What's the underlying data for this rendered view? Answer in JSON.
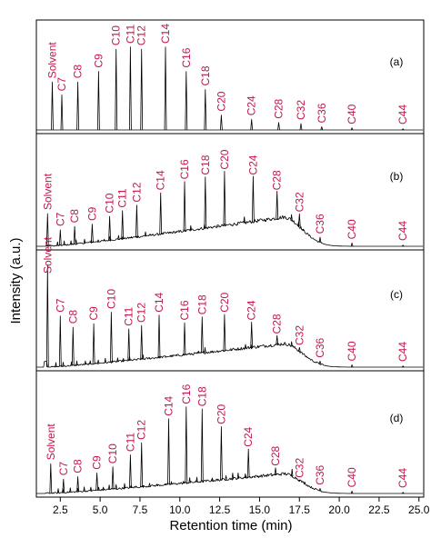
{
  "chart_data": {
    "type": "line",
    "xlabel": "Retention time (min)",
    "ylabel": "Intensity (a.u.)",
    "xlim": [
      1.0,
      25.3
    ],
    "xticks": [
      "2.5",
      "5.0",
      "7.5",
      "10.0",
      "12.5",
      "15.0",
      "17.5",
      "20.0",
      "22.5",
      "25.0"
    ],
    "xtick_values": [
      2.5,
      5.0,
      7.5,
      10.0,
      12.5,
      15.0,
      17.5,
      20.0,
      22.5,
      25.0
    ],
    "grid": false,
    "panels": [
      {
        "label": "(a)",
        "baseline_hump": 0.0,
        "peaks": [
          {
            "name": "Solvent",
            "x": 2.0,
            "height": 0.45
          },
          {
            "name": "C7",
            "x": 2.6,
            "height": 0.33
          },
          {
            "name": "C8",
            "x": 3.6,
            "height": 0.45
          },
          {
            "name": "C9",
            "x": 4.9,
            "height": 0.55
          },
          {
            "name": "C10",
            "x": 6.0,
            "height": 0.76
          },
          {
            "name": "C11",
            "x": 6.9,
            "height": 0.78
          },
          {
            "name": "C12",
            "x": 7.6,
            "height": 0.76
          },
          {
            "name": "C14",
            "x": 9.1,
            "height": 0.78
          },
          {
            "name": "C16",
            "x": 10.4,
            "height": 0.55
          },
          {
            "name": "C18",
            "x": 11.6,
            "height": 0.38
          },
          {
            "name": "C20",
            "x": 12.6,
            "height": 0.14
          },
          {
            "name": "C24",
            "x": 14.5,
            "height": 0.1
          },
          {
            "name": "C28",
            "x": 16.2,
            "height": 0.07
          },
          {
            "name": "C32",
            "x": 17.6,
            "height": 0.06
          },
          {
            "name": "C36",
            "x": 18.9,
            "height": 0.03
          },
          {
            "name": "C40",
            "x": 20.8,
            "height": 0.02
          },
          {
            "name": "C44",
            "x": 24.0,
            "height": 0.01
          }
        ]
      },
      {
        "label": "(b)",
        "baseline_hump": 0.26,
        "peaks": [
          {
            "name": "Solvent",
            "x": 1.7,
            "height": 0.3
          },
          {
            "name": "C7",
            "x": 2.5,
            "height": 0.15
          },
          {
            "name": "C8",
            "x": 3.4,
            "height": 0.18
          },
          {
            "name": "C9",
            "x": 4.5,
            "height": 0.2
          },
          {
            "name": "C10",
            "x": 5.6,
            "height": 0.27
          },
          {
            "name": "C11",
            "x": 6.4,
            "height": 0.32
          },
          {
            "name": "C12",
            "x": 7.3,
            "height": 0.37
          },
          {
            "name": "C14",
            "x": 8.8,
            "height": 0.48
          },
          {
            "name": "C16",
            "x": 10.3,
            "height": 0.58
          },
          {
            "name": "C18",
            "x": 11.6,
            "height": 0.62
          },
          {
            "name": "C20",
            "x": 12.8,
            "height": 0.67
          },
          {
            "name": "C24",
            "x": 14.6,
            "height": 0.62
          },
          {
            "name": "C28",
            "x": 16.1,
            "height": 0.48
          },
          {
            "name": "C32",
            "x": 17.5,
            "height": 0.28
          },
          {
            "name": "C36",
            "x": 18.8,
            "height": 0.08
          },
          {
            "name": "C40",
            "x": 20.8,
            "height": 0.03
          },
          {
            "name": "C44",
            "x": 24.0,
            "height": 0.01
          }
        ]
      },
      {
        "label": "(c)",
        "baseline_hump": 0.2,
        "peaks": [
          {
            "name": "Solvent",
            "x": 1.7,
            "height": 0.9
          },
          {
            "name": "C7",
            "x": 2.5,
            "height": 0.45
          },
          {
            "name": "C8",
            "x": 3.3,
            "height": 0.35
          },
          {
            "name": "C9",
            "x": 4.6,
            "height": 0.38
          },
          {
            "name": "C10",
            "x": 5.7,
            "height": 0.48
          },
          {
            "name": "C11",
            "x": 6.8,
            "height": 0.33
          },
          {
            "name": "C12",
            "x": 7.6,
            "height": 0.36
          },
          {
            "name": "C14",
            "x": 8.7,
            "height": 0.45
          },
          {
            "name": "C16",
            "x": 10.3,
            "height": 0.38
          },
          {
            "name": "C18",
            "x": 11.4,
            "height": 0.43
          },
          {
            "name": "C20",
            "x": 12.8,
            "height": 0.45
          },
          {
            "name": "C24",
            "x": 14.5,
            "height": 0.38
          },
          {
            "name": "C28",
            "x": 16.1,
            "height": 0.26
          },
          {
            "name": "C32",
            "x": 17.5,
            "height": 0.16
          },
          {
            "name": "C36",
            "x": 18.8,
            "height": 0.05
          },
          {
            "name": "C40",
            "x": 20.8,
            "height": 0.02
          },
          {
            "name": "C44",
            "x": 24.0,
            "height": 0.01
          }
        ]
      },
      {
        "label": "(d)",
        "baseline_hump": 0.16,
        "peaks": [
          {
            "name": "Solvent",
            "x": 1.9,
            "height": 0.25
          },
          {
            "name": "C7",
            "x": 2.7,
            "height": 0.12
          },
          {
            "name": "C8",
            "x": 3.6,
            "height": 0.14
          },
          {
            "name": "C9",
            "x": 4.8,
            "height": 0.17
          },
          {
            "name": "C10",
            "x": 5.8,
            "height": 0.22
          },
          {
            "name": "C11",
            "x": 6.9,
            "height": 0.32
          },
          {
            "name": "C12",
            "x": 7.6,
            "height": 0.42
          },
          {
            "name": "C14",
            "x": 9.3,
            "height": 0.62
          },
          {
            "name": "C16",
            "x": 10.4,
            "height": 0.72
          },
          {
            "name": "C18",
            "x": 11.4,
            "height": 0.7
          },
          {
            "name": "C20",
            "x": 12.6,
            "height": 0.55
          },
          {
            "name": "C24",
            "x": 14.3,
            "height": 0.36
          },
          {
            "name": "C28",
            "x": 16.0,
            "height": 0.2
          },
          {
            "name": "C32",
            "x": 17.5,
            "height": 0.1
          },
          {
            "name": "C36",
            "x": 18.8,
            "height": 0.04
          },
          {
            "name": "C40",
            "x": 20.8,
            "height": 0.02
          },
          {
            "name": "C44",
            "x": 24.0,
            "height": 0.01
          }
        ]
      }
    ]
  }
}
